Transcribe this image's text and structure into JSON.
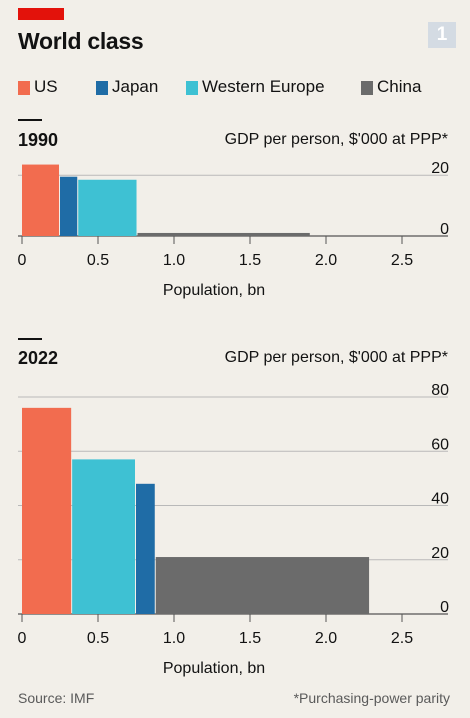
{
  "header": {
    "title": "World class",
    "badge": "1"
  },
  "legend": [
    {
      "label": "US",
      "color": "#f26c4f"
    },
    {
      "label": "Japan",
      "color": "#1f6ca6"
    },
    {
      "label": "Western Europe",
      "color": "#3ec1d3"
    },
    {
      "label": "China",
      "color": "#6b6b6b"
    }
  ],
  "footer": {
    "source": "Source: IMF",
    "note": "*Purchasing-power parity"
  },
  "chart_data": [
    {
      "type": "bar",
      "title": "1990",
      "ylabel": "GDP per person, $'000 at PPP*",
      "xlabel": "Population, bn",
      "x_ticks": [
        "0",
        "0.5",
        "1.0",
        "1.5",
        "2.0",
        "2.5"
      ],
      "y_ticks": [
        "0",
        "20"
      ],
      "xlim": [
        0,
        2.8
      ],
      "ylim": [
        0,
        25
      ],
      "series": [
        {
          "name": "US",
          "population": 0.25,
          "gdp": 23.5
        },
        {
          "name": "Japan",
          "population": 0.12,
          "gdp": 19.5
        },
        {
          "name": "Western Europe",
          "population": 0.39,
          "gdp": 18.5
        },
        {
          "name": "China",
          "population": 1.14,
          "gdp": 1.0
        }
      ]
    },
    {
      "type": "bar",
      "title": "2022",
      "ylabel": "GDP per person, $'000 at PPP*",
      "xlabel": "Population, bn",
      "x_ticks": [
        "0",
        "0.5",
        "1.0",
        "1.5",
        "2.0",
        "2.5"
      ],
      "y_ticks": [
        "0",
        "20",
        "40",
        "60",
        "80"
      ],
      "xlim": [
        0,
        2.8
      ],
      "ylim": [
        0,
        80
      ],
      "series": [
        {
          "name": "US",
          "population": 0.33,
          "gdp": 76
        },
        {
          "name": "Western Europe",
          "population": 0.42,
          "gdp": 57
        },
        {
          "name": "Japan",
          "population": 0.13,
          "gdp": 48
        },
        {
          "name": "China",
          "population": 1.41,
          "gdp": 21
        }
      ]
    }
  ]
}
